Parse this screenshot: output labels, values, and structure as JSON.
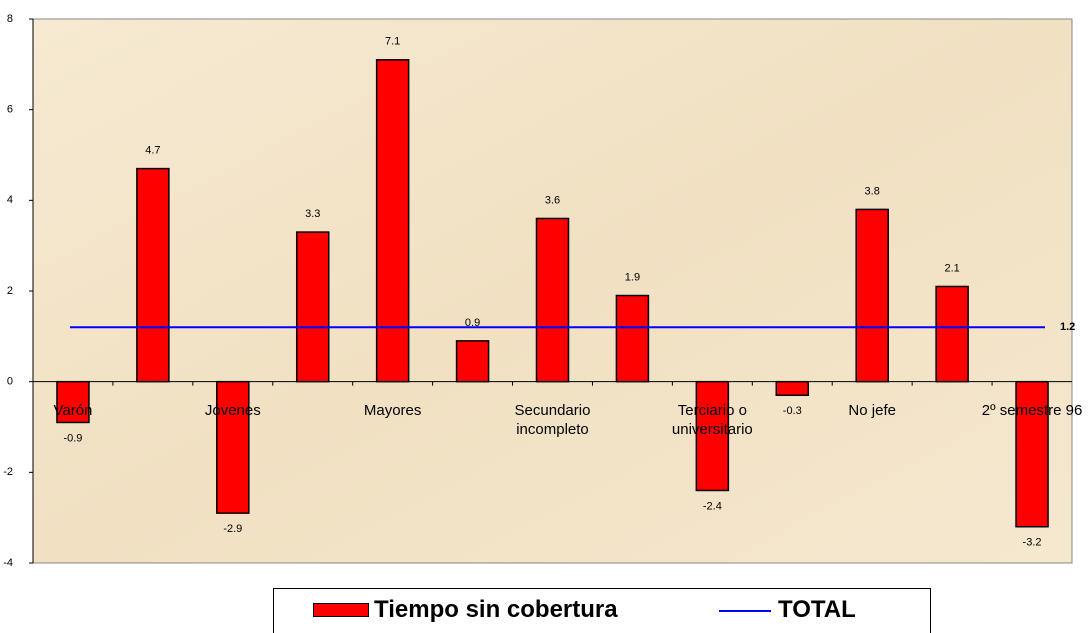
{
  "chart_data": {
    "type": "bar",
    "categories": [
      "Varón",
      null,
      "Jóvenes",
      null,
      "Mayores",
      null,
      "Secundario incompleto",
      null,
      "Terciario o universitario",
      null,
      "No jefe",
      null,
      "2º semestre 96"
    ],
    "series": [
      {
        "name": "Tiempo sin cobertura",
        "color": "#ff0000",
        "values": [
          -0.9,
          4.7,
          -2.9,
          3.3,
          7.1,
          0.9,
          3.6,
          1.9,
          -2.4,
          -0.3,
          3.8,
          2.1,
          -3.2
        ]
      }
    ],
    "total": {
      "name": "TOTAL",
      "color": "#0000ff",
      "value": 1.2
    },
    "ylim": [
      -4,
      8
    ],
    "yticks": [
      -4,
      -2,
      0,
      2,
      4,
      6,
      8
    ]
  }
}
